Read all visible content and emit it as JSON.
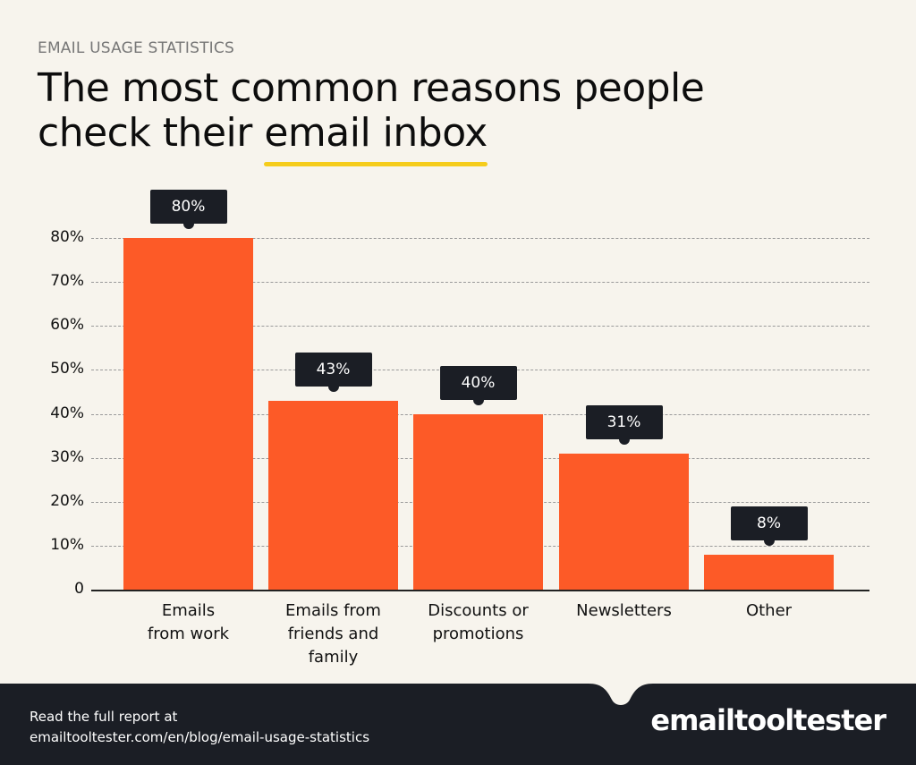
{
  "header": {
    "eyebrow": "EMAIL USAGE STATISTICS",
    "title_line1": "The most common reasons people",
    "title_line2_prefix": "check their ",
    "title_line2_highlight": "email inbox"
  },
  "colors": {
    "background": "#f7f4ed",
    "bar": "#fd5a27",
    "label_bg": "#1b1e25",
    "highlight": "#f5cc1b",
    "footer": "#1b1e25"
  },
  "chart_data": {
    "type": "bar",
    "title": "The most common reasons people check their email inbox",
    "subtitle": "EMAIL USAGE STATISTICS",
    "categories": [
      "Emails from work",
      "Emails from friends and family",
      "Discounts or promotions",
      "Newsletters",
      "Other"
    ],
    "values": [
      80,
      43,
      40,
      31,
      8
    ],
    "value_labels": [
      "80%",
      "43%",
      "40%",
      "31%",
      "8%"
    ],
    "xlabel": "",
    "ylabel": "",
    "ylim": [
      0,
      80
    ],
    "yticks": [
      "0",
      "10%",
      "20%",
      "30%",
      "40%",
      "50%",
      "60%",
      "70%",
      "80%"
    ],
    "grid": true,
    "legend": "none"
  },
  "x_labels": [
    [
      "Emails",
      "from work"
    ],
    [
      "Emails from",
      "friends and",
      "family"
    ],
    [
      "Discounts or",
      "promotions"
    ],
    [
      "Newsletters"
    ],
    [
      "Other"
    ]
  ],
  "footer": {
    "line1": "Read the full report at",
    "line2": "emailtooltester.com/en/blog/email-usage-statistics",
    "logo": "emailtooltester"
  }
}
